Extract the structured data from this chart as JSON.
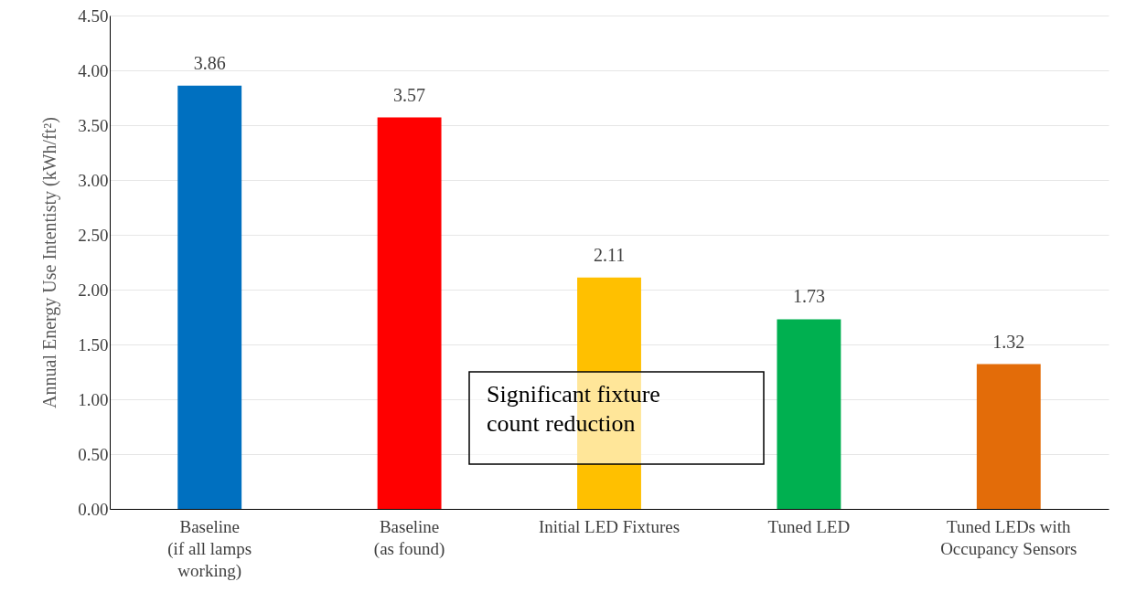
{
  "chart_data": {
    "type": "bar",
    "ylabel": "Annual Energy Use Intentisty (kWh/ft²)",
    "categories": [
      "Baseline (if all lamps working)",
      "Baseline (as found)",
      "Initial LED Fixtures",
      "Tuned LED",
      "Tuned LEDs with Occupancy Sensors"
    ],
    "values": [
      3.86,
      3.57,
      2.11,
      1.73,
      1.32
    ],
    "colors": [
      "#0070c0",
      "#ff0000",
      "#ffc000",
      "#00b050",
      "#e36c09"
    ],
    "ylim": [
      0,
      4.5
    ],
    "yticks": [
      {
        "value": 0,
        "label": "0.00"
      },
      {
        "value": 0.5,
        "label": "0.50"
      },
      {
        "value": 1,
        "label": "1.00"
      },
      {
        "value": 1.5,
        "label": "1.50"
      },
      {
        "value": 2,
        "label": "2.00"
      },
      {
        "value": 2.5,
        "label": "2.50"
      },
      {
        "value": 3,
        "label": "3.00"
      },
      {
        "value": 3.5,
        "label": "3.50"
      },
      {
        "value": 4,
        "label": "4.00"
      },
      {
        "value": 4.5,
        "label": "4.50"
      }
    ],
    "grid": "y",
    "data_labels": true,
    "annotations": [
      "Significant fixture count reduction"
    ]
  }
}
